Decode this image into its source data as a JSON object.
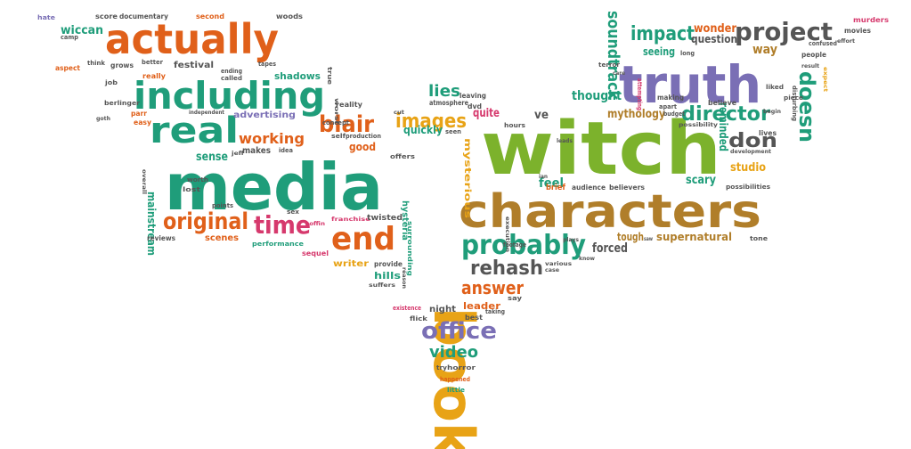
{
  "colors": {
    "green": "#7cb22c",
    "teal": "#1f9d7a",
    "orange": "#e0601a",
    "purple": "#7a6fb5",
    "brown": "#b07e2a",
    "gold": "#e8a316",
    "gray": "#555555",
    "pink": "#d6396d"
  },
  "words": [
    {
      "text": "witch",
      "color": "green"
    },
    {
      "text": "media",
      "color": "teal"
    },
    {
      "text": "characters",
      "color": "brown"
    },
    {
      "text": "book",
      "color": "gold"
    },
    {
      "text": "truth",
      "color": "purple"
    },
    {
      "text": "actually",
      "color": "orange"
    },
    {
      "text": "including",
      "color": "teal"
    },
    {
      "text": "real",
      "color": "teal"
    },
    {
      "text": "end",
      "color": "orange"
    },
    {
      "text": "probably",
      "color": "teal"
    },
    {
      "text": "time",
      "color": "pink"
    },
    {
      "text": "original",
      "color": "orange"
    },
    {
      "text": "project",
      "color": "gray"
    },
    {
      "text": "impact",
      "color": "teal"
    },
    {
      "text": "director",
      "color": "teal"
    },
    {
      "text": "blair",
      "color": "orange"
    },
    {
      "text": "images",
      "color": "gold"
    },
    {
      "text": "rehash",
      "color": "gray"
    },
    {
      "text": "answer",
      "color": "orange"
    },
    {
      "text": "office",
      "color": "purple"
    },
    {
      "text": "video",
      "color": "teal"
    },
    {
      "text": "doesn",
      "color": "teal"
    },
    {
      "text": "don",
      "color": "gray"
    },
    {
      "text": "working",
      "color": "orange"
    },
    {
      "text": "lies",
      "color": "teal"
    },
    {
      "text": "soundtrack",
      "color": "teal"
    },
    {
      "text": "wonder",
      "color": "orange"
    },
    {
      "text": "question",
      "color": "gray"
    },
    {
      "text": "way",
      "color": "brown"
    },
    {
      "text": "seeing",
      "color": "teal"
    },
    {
      "text": "thought",
      "color": "teal"
    },
    {
      "text": "mythology",
      "color": "brown"
    },
    {
      "text": "reminded",
      "color": "teal"
    },
    {
      "text": "scary",
      "color": "teal"
    },
    {
      "text": "studio",
      "color": "gold"
    },
    {
      "text": "supernatural",
      "color": "brown"
    },
    {
      "text": "forced",
      "color": "gray"
    },
    {
      "text": "tough",
      "color": "brown"
    },
    {
      "text": "feel",
      "color": "teal"
    },
    {
      "text": "brief",
      "color": "orange"
    },
    {
      "text": "mysterious",
      "color": "gold"
    },
    {
      "text": "quite",
      "color": "pink"
    },
    {
      "text": "ve",
      "color": "gray"
    },
    {
      "text": "quickly",
      "color": "teal"
    },
    {
      "text": "good",
      "color": "orange"
    },
    {
      "text": "sense",
      "color": "teal"
    },
    {
      "text": "makes",
      "color": "gray"
    },
    {
      "text": "mainstream",
      "color": "teal"
    },
    {
      "text": "scenes",
      "color": "orange"
    },
    {
      "text": "festival",
      "color": "gray"
    },
    {
      "text": "shadows",
      "color": "teal"
    },
    {
      "text": "advertising",
      "color": "purple"
    },
    {
      "text": "wiccan",
      "color": "teal"
    },
    {
      "text": "camp",
      "color": "gray"
    },
    {
      "text": "score",
      "color": "gray"
    },
    {
      "text": "documentary",
      "color": "gray"
    },
    {
      "text": "second",
      "color": "orange"
    },
    {
      "text": "woods",
      "color": "gray"
    },
    {
      "text": "hate",
      "color": "purple"
    },
    {
      "text": "aspect",
      "color": "orange"
    },
    {
      "text": "grows",
      "color": "gray"
    },
    {
      "text": "better",
      "color": "gray"
    },
    {
      "text": "really",
      "color": "orange"
    },
    {
      "text": "ending",
      "color": "gray"
    },
    {
      "text": "called",
      "color": "gray"
    },
    {
      "text": "tapes",
      "color": "gray"
    },
    {
      "text": "think",
      "color": "gray"
    },
    {
      "text": "job",
      "color": "gray"
    },
    {
      "text": "true",
      "color": "gray"
    },
    {
      "text": "reality",
      "color": "gray"
    },
    {
      "text": "concept",
      "color": "gray"
    },
    {
      "text": "berlinger",
      "color": "gray"
    },
    {
      "text": "parr",
      "color": "orange"
    },
    {
      "text": "easy",
      "color": "orange"
    },
    {
      "text": "independent",
      "color": "gray"
    },
    {
      "text": "worst",
      "color": "gray"
    },
    {
      "text": "self",
      "color": "gray"
    },
    {
      "text": "production",
      "color": "gray"
    },
    {
      "text": "dvd",
      "color": "gray"
    },
    {
      "text": "leaving",
      "color": "gray"
    },
    {
      "text": "atmosphere",
      "color": "gray"
    },
    {
      "text": "seen",
      "color": "gray"
    },
    {
      "text": "hours",
      "color": "gray"
    },
    {
      "text": "idea",
      "color": "gray"
    },
    {
      "text": "jeff",
      "color": "gray"
    },
    {
      "text": "worth",
      "color": "gray"
    },
    {
      "text": "lost",
      "color": "gray"
    },
    {
      "text": "overall",
      "color": "gray"
    },
    {
      "text": "goth",
      "color": "gray"
    },
    {
      "text": "points",
      "color": "gray"
    },
    {
      "text": "sex",
      "color": "gray"
    },
    {
      "text": "reviews",
      "color": "gray"
    },
    {
      "text": "performance",
      "color": "teal"
    },
    {
      "text": "sequel",
      "color": "pink"
    },
    {
      "text": "writer",
      "color": "gold"
    },
    {
      "text": "franchise",
      "color": "pink"
    },
    {
      "text": "coffin",
      "color": "pink"
    },
    {
      "text": "hysteria",
      "color": "teal"
    },
    {
      "text": "surrounding",
      "color": "teal"
    },
    {
      "text": "twisted",
      "color": "gray"
    },
    {
      "text": "provide",
      "color": "gray"
    },
    {
      "text": "hills",
      "color": "teal"
    },
    {
      "text": "suffers",
      "color": "gray"
    },
    {
      "text": "reason",
      "color": "gray"
    },
    {
      "text": "offers",
      "color": "gray"
    },
    {
      "text": "execution",
      "color": "gray"
    },
    {
      "text": "footage",
      "color": "gray"
    },
    {
      "text": "leads",
      "color": "gray"
    },
    {
      "text": "audience",
      "color": "gray"
    },
    {
      "text": "believers",
      "color": "gray"
    },
    {
      "text": "plays",
      "color": "gray"
    },
    {
      "text": "know",
      "color": "gray"
    },
    {
      "text": "saw",
      "color": "gray"
    },
    {
      "text": "tone",
      "color": "gray"
    },
    {
      "text": "case",
      "color": "gray"
    },
    {
      "text": "various",
      "color": "gray"
    },
    {
      "text": "say",
      "color": "gray"
    },
    {
      "text": "taking",
      "color": "gray"
    },
    {
      "text": "best",
      "color": "gray"
    },
    {
      "text": "leader",
      "color": "orange"
    },
    {
      "text": "night",
      "color": "gray"
    },
    {
      "text": "existence",
      "color": "pink"
    },
    {
      "text": "flick",
      "color": "gray"
    },
    {
      "text": "try",
      "color": "gray"
    },
    {
      "text": "horror",
      "color": "gray"
    },
    {
      "text": "happened",
      "color": "orange"
    },
    {
      "text": "little",
      "color": "teal"
    },
    {
      "text": "terror",
      "color": "gray"
    },
    {
      "text": "care",
      "color": "gray"
    },
    {
      "text": "long",
      "color": "gray"
    },
    {
      "text": "attempting",
      "color": "pink"
    },
    {
      "text": "making",
      "color": "gray"
    },
    {
      "text": "apart",
      "color": "gray"
    },
    {
      "text": "budget",
      "color": "gray"
    },
    {
      "text": "believe",
      "color": "gray"
    },
    {
      "text": "liked",
      "color": "gray"
    },
    {
      "text": "disturbing",
      "color": "gray"
    },
    {
      "text": "piece",
      "color": "gray"
    },
    {
      "text": "begin",
      "color": "gray"
    },
    {
      "text": "lives",
      "color": "gray"
    },
    {
      "text": "possibility",
      "color": "gray"
    },
    {
      "text": "development",
      "color": "gray"
    },
    {
      "text": "possibilities",
      "color": "gray"
    },
    {
      "text": "people",
      "color": "gray"
    },
    {
      "text": "result",
      "color": "gray"
    },
    {
      "text": "confused",
      "color": "gray"
    },
    {
      "text": "murders",
      "color": "pink"
    },
    {
      "text": "movies",
      "color": "gray"
    },
    {
      "text": "effort",
      "color": "gray"
    },
    {
      "text": "expect",
      "color": "gold"
    },
    {
      "text": "ian",
      "color": "gray"
    },
    {
      "text": "cut",
      "color": "gray"
    }
  ]
}
